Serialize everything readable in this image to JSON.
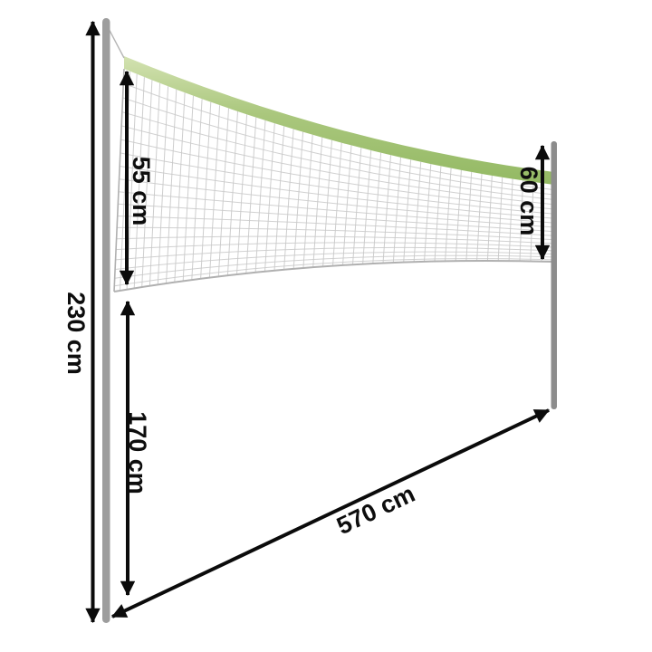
{
  "diagram": {
    "kind": "product-dimension-diagram",
    "subject": "volleyball-badminton-net-with-poles",
    "measurements": {
      "pole_height": {
        "value": 230,
        "unit": "cm",
        "label": "230 cm",
        "describes": "total left pole height"
      },
      "net_band_drop_left": {
        "value": 55,
        "unit": "cm",
        "label": "55 cm",
        "describes": "net height at left side"
      },
      "bottom_clearance": {
        "value": 170,
        "unit": "cm",
        "label": "170 cm",
        "describes": "distance from ground to net bottom"
      },
      "net_band_drop_right": {
        "value": 60,
        "unit": "cm",
        "label": "60 cm",
        "describes": "net height at right pole"
      },
      "net_length": {
        "value": 570,
        "unit": "cm",
        "label": "570 cm",
        "describes": "net span between poles"
      }
    },
    "colors": {
      "background": "#ffffff",
      "arrow": "#0b0b0b",
      "label_text": "#0d0d0d",
      "pole_left": "#9d9d9d",
      "pole_right": "#8c8c8c",
      "band_light": "#d3e2b1",
      "band_mid": "#aac77d",
      "band_dark": "#93b963",
      "mesh": "#c9c9c9",
      "cord": "#b0b0b0",
      "string": "#b5b5b5"
    }
  }
}
